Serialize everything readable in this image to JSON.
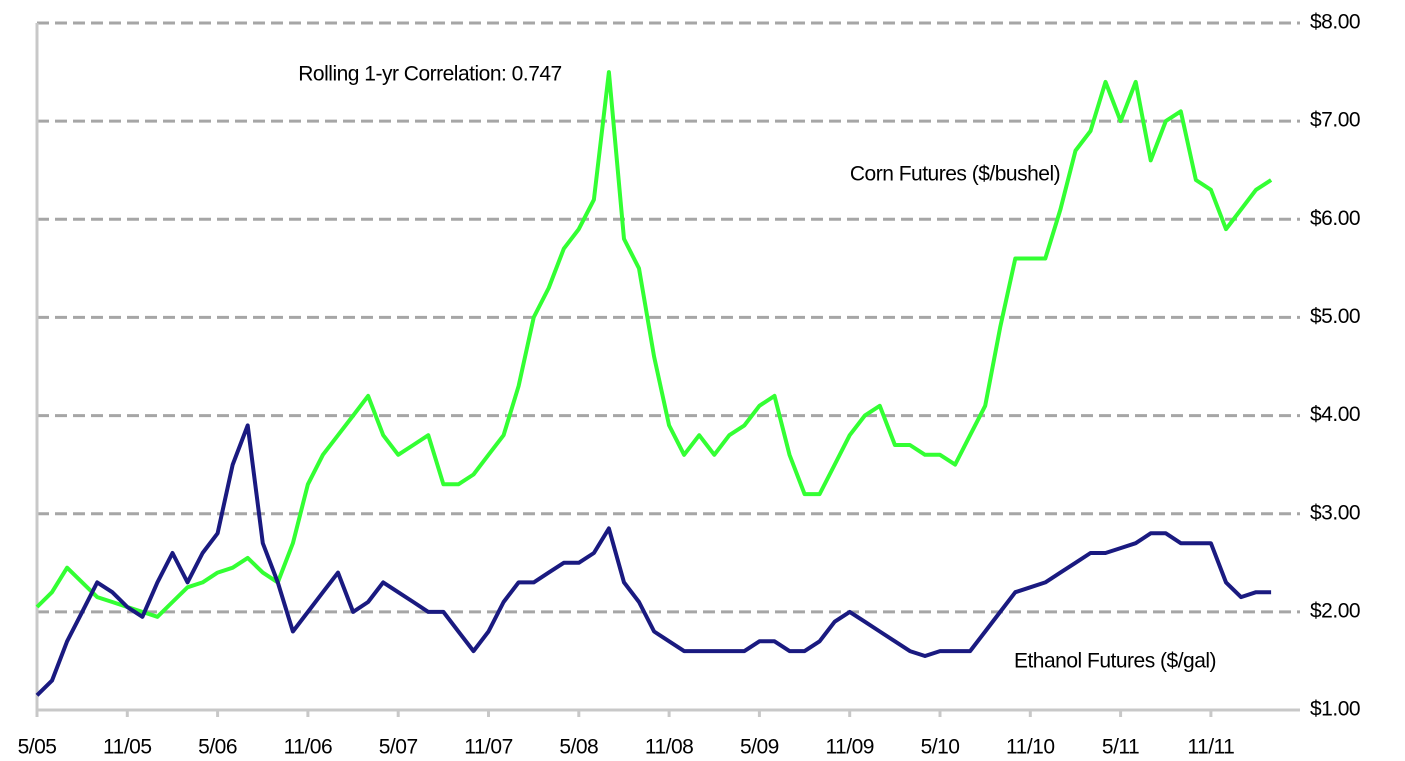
{
  "chart_data": {
    "type": "line",
    "x": [
      "5/05",
      "6/05",
      "7/05",
      "8/05",
      "9/05",
      "10/05",
      "11/05",
      "12/05",
      "1/06",
      "2/06",
      "3/06",
      "4/06",
      "5/06",
      "6/06",
      "7/06",
      "8/06",
      "9/06",
      "10/06",
      "11/06",
      "12/06",
      "1/07",
      "2/07",
      "3/07",
      "4/07",
      "5/07",
      "6/07",
      "7/07",
      "8/07",
      "9/07",
      "10/07",
      "11/07",
      "12/07",
      "1/08",
      "2/08",
      "3/08",
      "4/08",
      "5/08",
      "6/08",
      "7/08",
      "8/08",
      "9/08",
      "10/08",
      "11/08",
      "12/08",
      "1/09",
      "2/09",
      "3/09",
      "4/09",
      "5/09",
      "6/09",
      "7/09",
      "8/09",
      "9/09",
      "10/09",
      "11/09",
      "12/09",
      "1/10",
      "2/10",
      "3/10",
      "4/10",
      "5/10",
      "6/10",
      "7/10",
      "8/10",
      "9/10",
      "10/10",
      "11/10",
      "12/10",
      "1/11",
      "2/11",
      "3/11",
      "4/11",
      "5/11",
      "6/11",
      "7/11",
      "8/11",
      "9/11",
      "10/11",
      "11/11",
      "12/11",
      "1/12",
      "2/12",
      "3/12"
    ],
    "xticks": [
      "5/05",
      "11/05",
      "5/06",
      "11/06",
      "5/07",
      "11/07",
      "5/08",
      "11/08",
      "5/09",
      "11/09",
      "5/10",
      "11/10",
      "5/11",
      "11/11"
    ],
    "series": [
      {
        "name": "Corn Futures ($/bushel)",
        "color": "#33ff33",
        "values": [
          2.05,
          2.2,
          2.45,
          2.3,
          2.15,
          2.1,
          2.05,
          2.0,
          1.95,
          2.1,
          2.25,
          2.3,
          2.4,
          2.45,
          2.55,
          2.4,
          2.3,
          2.7,
          3.3,
          3.6,
          3.8,
          4.0,
          4.2,
          3.8,
          3.6,
          3.7,
          3.8,
          3.3,
          3.3,
          3.4,
          3.6,
          3.8,
          4.3,
          5.0,
          5.3,
          5.7,
          5.9,
          6.2,
          7.5,
          5.8,
          5.5,
          4.6,
          3.9,
          3.6,
          3.8,
          3.6,
          3.8,
          3.9,
          4.1,
          4.2,
          3.6,
          3.2,
          3.2,
          3.5,
          3.8,
          4.0,
          4.1,
          3.7,
          3.7,
          3.6,
          3.6,
          3.5,
          3.8,
          4.1,
          4.9,
          5.6,
          5.6,
          5.6,
          6.1,
          6.7,
          6.9,
          7.4,
          7.0,
          7.4,
          6.6,
          7.0,
          7.1,
          6.4,
          6.3,
          5.9,
          6.1,
          6.3,
          6.4
        ]
      },
      {
        "name": "Ethanol Futures ($/gal)",
        "color": "#1a1a80",
        "values": [
          1.15,
          1.3,
          1.7,
          2.0,
          2.3,
          2.2,
          2.05,
          1.95,
          2.3,
          2.6,
          2.3,
          2.6,
          2.8,
          3.5,
          3.9,
          2.7,
          2.3,
          1.8,
          2.0,
          2.2,
          2.4,
          2.0,
          2.1,
          2.3,
          2.2,
          2.1,
          2.0,
          2.0,
          1.8,
          1.6,
          1.8,
          2.1,
          2.3,
          2.3,
          2.4,
          2.5,
          2.5,
          2.6,
          2.85,
          2.3,
          2.1,
          1.8,
          1.7,
          1.6,
          1.6,
          1.6,
          1.6,
          1.6,
          1.7,
          1.7,
          1.6,
          1.6,
          1.7,
          1.9,
          2.0,
          1.9,
          1.8,
          1.7,
          1.6,
          1.55,
          1.6,
          1.6,
          1.6,
          1.8,
          2.0,
          2.2,
          2.25,
          2.3,
          2.4,
          2.5,
          2.6,
          2.6,
          2.65,
          2.7,
          2.8,
          2.8,
          2.7,
          2.7,
          2.7,
          2.3,
          2.15,
          2.2,
          2.2
        ]
      }
    ],
    "annotations": [
      "Rolling 1-yr Correlation: 0.747"
    ],
    "ylim": [
      1,
      8
    ],
    "yticks": [
      {
        "value": 1,
        "label": "$1.00"
      },
      {
        "value": 2,
        "label": "$2.00"
      },
      {
        "value": 3,
        "label": "$3.00"
      },
      {
        "value": 4,
        "label": "$4.00"
      },
      {
        "value": 5,
        "label": "$5.00"
      },
      {
        "value": 6,
        "label": "$6.00"
      },
      {
        "value": 7,
        "label": "$7.00"
      },
      {
        "value": 8,
        "label": "$8.00"
      }
    ],
    "y_axis_side": "right",
    "grid": true
  }
}
